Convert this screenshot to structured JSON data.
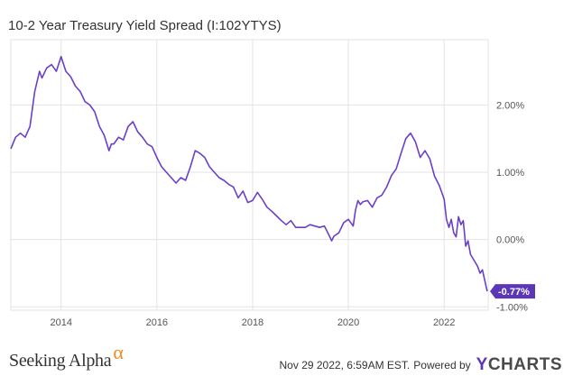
{
  "title": "10-2 Year Treasury Yield Spread (I:102YTYS)",
  "branding": {
    "publisher": "Seeking Alpha",
    "publisher_mark": "α",
    "timestamp": "Nov 29 2022, 6:59AM EST.",
    "powered_by": "Powered by",
    "brand_y": "Y",
    "brand_rest": "CHARTS"
  },
  "colors": {
    "line": "#6a3fc9",
    "grid": "#e3e3e3",
    "axis_text": "#555555",
    "accent": "#5b37b8",
    "logo_alpha": "#f08a24"
  },
  "chart_data": {
    "type": "line",
    "title": "10-2 Year Treasury Yield Spread (I:102YTYS)",
    "xlabel": "",
    "ylabel": "",
    "x_ticks": [
      "2014",
      "2016",
      "2018",
      "2020",
      "2022"
    ],
    "y_ticks": [
      "2.00%",
      "1.00%",
      "0.00%",
      "-1.00%"
    ],
    "ylim": [
      -1.05,
      2.97
    ],
    "xlim": [
      2012.95,
      2022.92
    ],
    "grid": true,
    "last_value_label": "-0.77%",
    "series": [
      {
        "x": [
          2012.95,
          2013.05,
          2013.15,
          2013.25,
          2013.35,
          2013.45,
          2013.55,
          2013.6,
          2013.7,
          2013.8,
          2013.9,
          2014.0,
          2014.1,
          2014.2,
          2014.3,
          2014.4,
          2014.5,
          2014.6,
          2014.7,
          2014.8,
          2014.9,
          2015.0,
          2015.05,
          2015.1,
          2015.2,
          2015.3,
          2015.4,
          2015.5,
          2015.6,
          2015.7,
          2015.8,
          2015.9,
          2016.0,
          2016.1,
          2016.2,
          2016.3,
          2016.4,
          2016.5,
          2016.6,
          2016.7,
          2016.8,
          2016.9,
          2017.0,
          2017.1,
          2017.2,
          2017.3,
          2017.4,
          2017.5,
          2017.6,
          2017.7,
          2017.8,
          2017.9,
          2018.0,
          2018.1,
          2018.2,
          2018.3,
          2018.4,
          2018.5,
          2018.6,
          2018.7,
          2018.8,
          2018.9,
          2019.0,
          2019.1,
          2019.2,
          2019.3,
          2019.4,
          2019.5,
          2019.6,
          2019.65,
          2019.7,
          2019.8,
          2019.9,
          2020.0,
          2020.1,
          2020.15,
          2020.2,
          2020.25,
          2020.3,
          2020.4,
          2020.5,
          2020.6,
          2020.7,
          2020.8,
          2020.9,
          2021.0,
          2021.1,
          2021.2,
          2021.3,
          2021.4,
          2021.5,
          2021.6,
          2021.7,
          2021.8,
          2021.9,
          2022.0,
          2022.05,
          2022.1,
          2022.15,
          2022.2,
          2022.25,
          2022.3,
          2022.35,
          2022.4,
          2022.45,
          2022.5,
          2022.55,
          2022.6,
          2022.65,
          2022.7,
          2022.75,
          2022.8,
          2022.9
        ],
        "y": [
          1.35,
          1.52,
          1.58,
          1.52,
          1.68,
          2.2,
          2.5,
          2.4,
          2.55,
          2.6,
          2.5,
          2.72,
          2.5,
          2.42,
          2.28,
          2.2,
          2.05,
          2.0,
          1.9,
          1.68,
          1.55,
          1.32,
          1.42,
          1.42,
          1.52,
          1.48,
          1.68,
          1.75,
          1.6,
          1.52,
          1.42,
          1.38,
          1.22,
          1.08,
          1.0,
          0.92,
          0.84,
          0.92,
          0.88,
          1.08,
          1.32,
          1.28,
          1.22,
          1.08,
          1.0,
          0.92,
          0.88,
          0.82,
          0.78,
          0.62,
          0.72,
          0.55,
          0.58,
          0.7,
          0.6,
          0.48,
          0.42,
          0.35,
          0.28,
          0.22,
          0.28,
          0.18,
          0.18,
          0.18,
          0.22,
          0.2,
          0.18,
          0.2,
          0.06,
          -0.02,
          0.05,
          0.1,
          0.25,
          0.3,
          0.2,
          0.44,
          0.58,
          0.52,
          0.56,
          0.58,
          0.48,
          0.62,
          0.66,
          0.78,
          0.95,
          1.05,
          1.28,
          1.5,
          1.58,
          1.45,
          1.22,
          1.32,
          1.2,
          0.94,
          0.8,
          0.6,
          0.3,
          0.18,
          0.3,
          0.1,
          0.04,
          0.34,
          0.22,
          0.28,
          -0.1,
          -0.02,
          -0.22,
          -0.28,
          -0.34,
          -0.4,
          -0.5,
          -0.45,
          -0.77
        ]
      }
    ]
  }
}
